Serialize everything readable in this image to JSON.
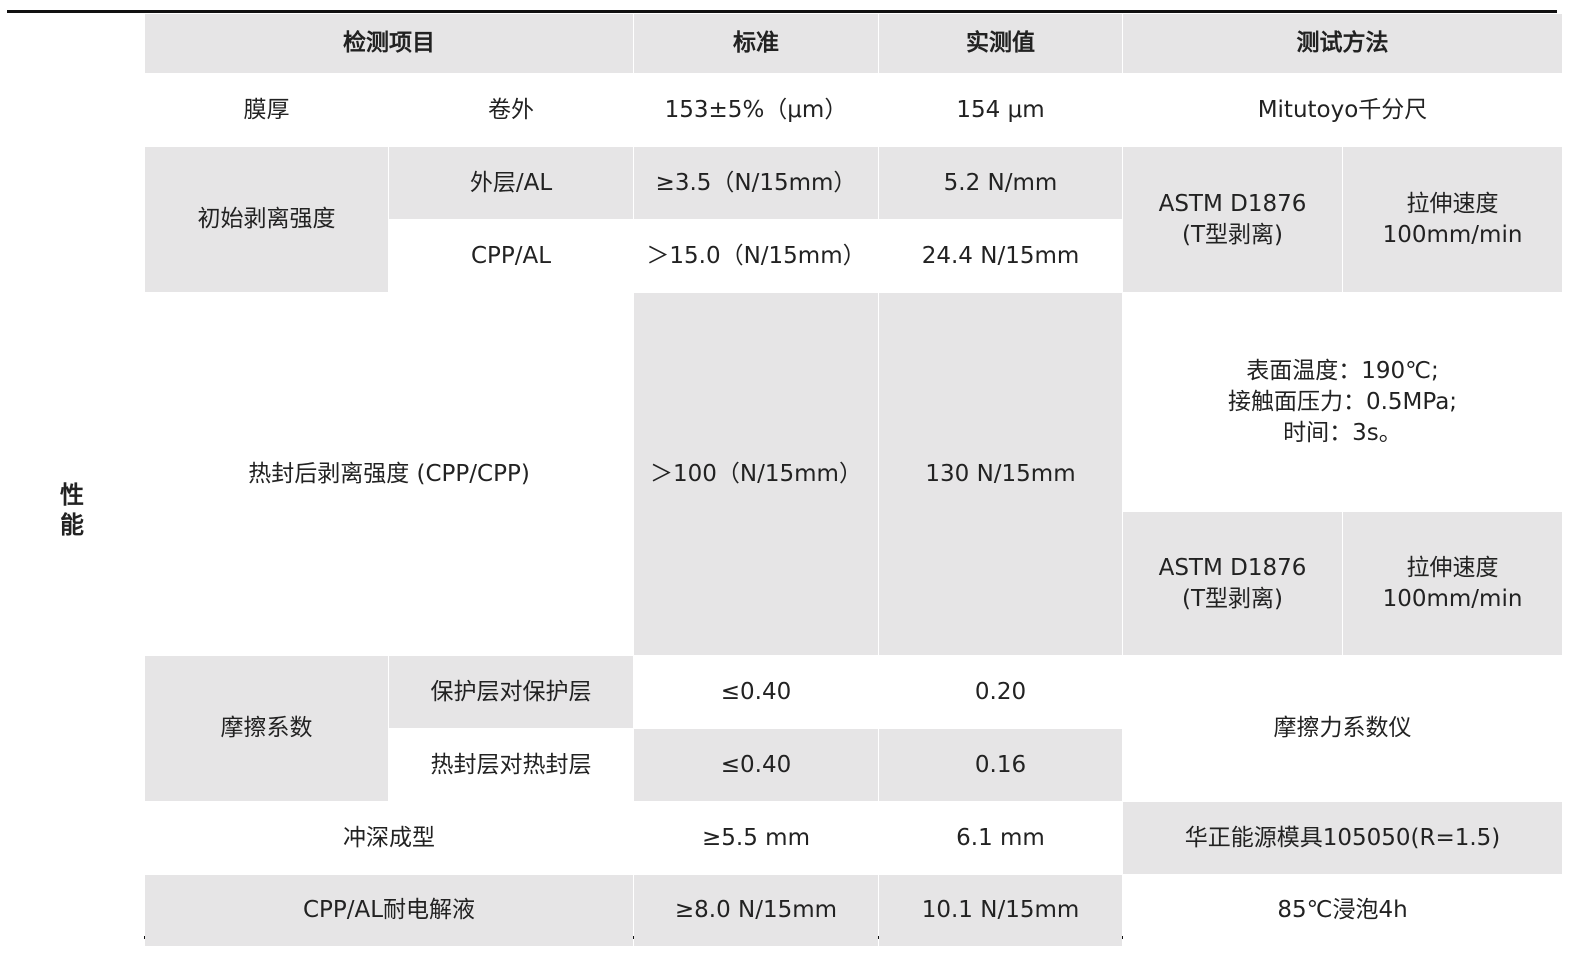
{
  "side_label": "性\n能",
  "header": {
    "item": "检测项目",
    "standard": "标准",
    "measured": "实测值",
    "method": "测试方法"
  },
  "rows": {
    "thickness": {
      "item": "膜厚",
      "sub": "卷外",
      "standard": "153±5%（μm）",
      "measured": "154 μm",
      "method": "Mitutoyo千分尺"
    },
    "initial_peel": {
      "item": "初始剥离强度",
      "sub1": "外层/AL",
      "standard1": "≥3.5（N/15mm）",
      "measured1": "5.2 N/mm",
      "sub2": "CPP/AL",
      "standard2": "＞15.0（N/15mm）",
      "measured2": "24.4 N/15mm",
      "method_a": "ASTM D1876\n(T型剥离)",
      "method_b": "拉伸速度\n100mm/min"
    },
    "heat_seal_peel": {
      "item": "热封后剥离强度 (CPP/CPP)",
      "standard": "＞100（N/15mm）",
      "measured": "130 N/15mm",
      "method_conditions": "表面温度：190℃;\n接触面压力：0.5MPa;\n时间：3s。",
      "method_a": "ASTM D1876\n(T型剥离)",
      "method_b": "拉伸速度\n100mm/min"
    },
    "friction": {
      "item": "摩擦系数",
      "sub1": "保护层对保护层",
      "standard1": "≤0.40",
      "measured1": "0.20",
      "sub2": "热封层对热封层",
      "standard2": "≤0.40",
      "measured2": "0.16",
      "method": "摩擦力系数仪"
    },
    "deep_draw": {
      "item": "冲深成型",
      "standard": "≥5.5 mm",
      "measured": "6.1 mm",
      "method": "华正能源模具105050(R=1.5)"
    },
    "electrolyte": {
      "item": "CPP/AL耐电解液",
      "standard": "≥8.0 N/15mm",
      "measured": "10.1 N/15mm",
      "method": "85℃浸泡4h"
    }
  },
  "colors": {
    "cell_shade": "#e6e5e6",
    "rule": "#111111"
  }
}
